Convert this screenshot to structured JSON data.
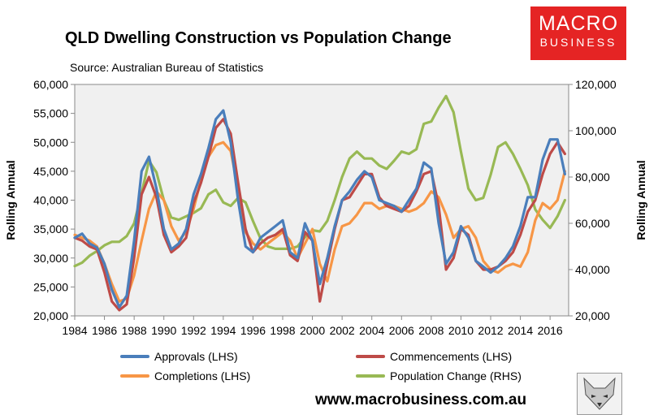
{
  "header": {
    "title": "QLD Dwelling Construction vs Population Change",
    "source": "Source: Australian Bureau of Statistics",
    "logo_line1": "MACRO",
    "logo_line2": "BUSINESS",
    "website": "www.macrobusiness.com.au"
  },
  "colors": {
    "approvals": "#4a7ebb",
    "commencements": "#be4b48",
    "completions": "#f79646",
    "population": "#98b954",
    "plot_bg": "#f0f0f0",
    "logo": "#e52424"
  },
  "chart_data": {
    "type": "line",
    "title": "QLD Dwelling Construction vs Population Change",
    "ylabel": "Rolling Annual",
    "y2label": "Rolling Annual",
    "xlim": [
      1984,
      2017.25
    ],
    "ylim": [
      20000,
      60000
    ],
    "y2lim": [
      20000,
      120000
    ],
    "y_ticks": [
      "20,000",
      "25,000",
      "30,000",
      "35,000",
      "40,000",
      "45,000",
      "50,000",
      "55,000",
      "60,000"
    ],
    "y2_ticks": [
      "20,000",
      "40,000",
      "60,000",
      "80,000",
      "100,000",
      "120,000"
    ],
    "x_ticks": [
      "1984",
      "1986",
      "1988",
      "1990",
      "1992",
      "1994",
      "1996",
      "1998",
      "2000",
      "2002",
      "2004",
      "2006",
      "2008",
      "2010",
      "2012",
      "2014",
      "2016"
    ],
    "grid": false,
    "legend": "bottom",
    "series": [
      {
        "name": "Approvals (LHS)",
        "axis": "left",
        "x": [
          1984,
          1984.5,
          1985,
          1985.5,
          1986,
          1986.5,
          1987,
          1987.5,
          1988,
          1988.5,
          1989,
          1989.5,
          1990,
          1990.5,
          1991,
          1991.5,
          1992,
          1992.5,
          1993,
          1993.5,
          1994,
          1994.5,
          1995,
          1995.5,
          1996,
          1996.5,
          1997,
          1997.5,
          1998,
          1998.5,
          1999,
          1999.5,
          2000,
          2000.5,
          2001,
          2001.5,
          2002,
          2002.5,
          2003,
          2003.5,
          2004,
          2004.5,
          2005,
          2005.5,
          2006,
          2006.5,
          2007,
          2007.5,
          2008,
          2008.5,
          2009,
          2009.5,
          2010,
          2010.5,
          2011,
          2011.5,
          2012,
          2012.5,
          2013,
          2013.5,
          2014,
          2014.5,
          2015,
          2015.5,
          2016,
          2016.5,
          2017
        ],
        "values": [
          33500,
          34200,
          32500,
          31800,
          29000,
          24500,
          21500,
          23500,
          33000,
          45000,
          47500,
          42000,
          35000,
          31500,
          32500,
          35000,
          41000,
          44500,
          49000,
          54000,
          55500,
          50000,
          40000,
          32000,
          31000,
          33500,
          34500,
          35500,
          36500,
          31000,
          30000,
          36000,
          33000,
          25500,
          30000,
          35500,
          40000,
          41500,
          43500,
          45000,
          44000,
          40000,
          39500,
          39000,
          38000,
          40000,
          42000,
          46500,
          45500,
          36000,
          29000,
          31000,
          35500,
          33500,
          29500,
          28500,
          27500,
          28500,
          30000,
          32000,
          35500,
          40500,
          40500,
          47000,
          50500,
          50500,
          44500
        ]
      },
      {
        "name": "Commencements (LHS)",
        "axis": "left",
        "x": [
          1984,
          1984.5,
          1985,
          1985.5,
          1986,
          1986.5,
          1987,
          1987.5,
          1988,
          1988.5,
          1989,
          1989.5,
          1990,
          1990.5,
          1991,
          1991.5,
          1992,
          1992.5,
          1993,
          1993.5,
          1994,
          1994.5,
          1995,
          1995.5,
          1996,
          1996.5,
          1997,
          1997.5,
          1998,
          1998.5,
          1999,
          1999.5,
          2000,
          2000.5,
          2001,
          2001.5,
          2002,
          2002.5,
          2003,
          2003.5,
          2004,
          2004.5,
          2005,
          2005.5,
          2006,
          2006.5,
          2007,
          2007.5,
          2008,
          2008.5,
          2009,
          2009.5,
          2010,
          2010.5,
          2011,
          2011.5,
          2012,
          2012.5,
          2013,
          2013.5,
          2014,
          2014.5,
          2015,
          2015.5,
          2016,
          2016.5,
          2017
        ],
        "values": [
          33500,
          33000,
          32000,
          31500,
          27500,
          22500,
          21000,
          22000,
          30000,
          41000,
          44000,
          40500,
          34000,
          31000,
          32000,
          33500,
          39500,
          43000,
          47500,
          52500,
          54000,
          51500,
          43000,
          35000,
          31000,
          32500,
          33500,
          34000,
          35000,
          30500,
          29500,
          34500,
          33000,
          22500,
          29000,
          35000,
          40000,
          40500,
          42500,
          44500,
          44500,
          40500,
          39000,
          38500,
          38000,
          39000,
          41500,
          44500,
          45000,
          39000,
          28000,
          30000,
          35000,
          34000,
          29500,
          28000,
          28000,
          28500,
          29500,
          31000,
          34000,
          38000,
          40000,
          44500,
          48000,
          50000,
          48000
        ]
      },
      {
        "name": "Completions (LHS)",
        "axis": "left",
        "x": [
          1984,
          1984.5,
          1985,
          1985.5,
          1986,
          1986.5,
          1987,
          1987.5,
          1988,
          1988.5,
          1989,
          1989.5,
          1990,
          1990.5,
          1991,
          1991.5,
          1992,
          1992.5,
          1993,
          1993.5,
          1994,
          1994.5,
          1995,
          1995.5,
          1996,
          1996.5,
          1997,
          1997.5,
          1998,
          1998.5,
          1999,
          1999.5,
          2000,
          2000.5,
          2001,
          2001.5,
          2002,
          2002.5,
          2003,
          2003.5,
          2004,
          2004.5,
          2005,
          2005.5,
          2006,
          2006.5,
          2007,
          2007.5,
          2008,
          2008.5,
          2009,
          2009.5,
          2010,
          2010.5,
          2011,
          2011.5,
          2012,
          2012.5,
          2013,
          2013.5,
          2014,
          2014.5,
          2015,
          2015.5,
          2016,
          2016.5,
          2017
        ],
        "values": [
          34000,
          33500,
          33000,
          32000,
          29000,
          25500,
          22500,
          23000,
          27000,
          33000,
          38500,
          41500,
          40000,
          35500,
          33000,
          34500,
          38500,
          43500,
          47500,
          49500,
          50000,
          48500,
          42000,
          34500,
          32500,
          31500,
          32500,
          33500,
          34500,
          33000,
          30000,
          32500,
          35000,
          29000,
          26000,
          31500,
          35500,
          36000,
          37500,
          39500,
          39500,
          38500,
          39000,
          39000,
          38500,
          38000,
          38500,
          39500,
          41500,
          40500,
          37500,
          33500,
          35000,
          35500,
          33500,
          29500,
          28000,
          27500,
          28500,
          29000,
          28500,
          31000,
          36500,
          39500,
          38500,
          40000,
          45000
        ]
      },
      {
        "name": "Population Change (RHS)",
        "axis": "right",
        "x": [
          1984,
          1984.5,
          1985,
          1985.5,
          1986,
          1986.5,
          1987,
          1987.5,
          1988,
          1988.5,
          1989,
          1989.5,
          1990,
          1990.5,
          1991,
          1991.5,
          1992,
          1992.5,
          1993,
          1993.5,
          1994,
          1994.5,
          1995,
          1995.5,
          1996,
          1996.5,
          1997,
          1997.5,
          1998,
          1998.5,
          1999,
          1999.5,
          2000,
          2000.5,
          2001,
          2001.5,
          2002,
          2002.5,
          2003,
          2003.5,
          2004,
          2004.5,
          2005,
          2005.5,
          2006,
          2006.5,
          2007,
          2007.5,
          2008,
          2008.5,
          2009,
          2009.5,
          2010,
          2010.5,
          2011,
          2011.5,
          2012,
          2012.5,
          2013,
          2013.5,
          2014,
          2014.5,
          2015,
          2015.5,
          2016,
          2016.5,
          2017
        ],
        "values": [
          41500,
          43000,
          46000,
          48000,
          50500,
          52000,
          52000,
          54500,
          60000,
          73000,
          87000,
          82000,
          70000,
          62500,
          61500,
          63000,
          64500,
          66500,
          72500,
          74500,
          69000,
          67500,
          71000,
          69000,
          61000,
          53500,
          50000,
          49000,
          49000,
          49000,
          50000,
          54000,
          57000,
          56500,
          61000,
          70000,
          80000,
          88000,
          91000,
          88000,
          88000,
          85000,
          83500,
          87000,
          91000,
          90000,
          92000,
          103000,
          104000,
          110000,
          115000,
          108000,
          91000,
          75000,
          70000,
          71000,
          81000,
          93000,
          95000,
          90000,
          83500,
          76500,
          66000,
          61500,
          58000,
          63000,
          70000
        ]
      }
    ]
  }
}
